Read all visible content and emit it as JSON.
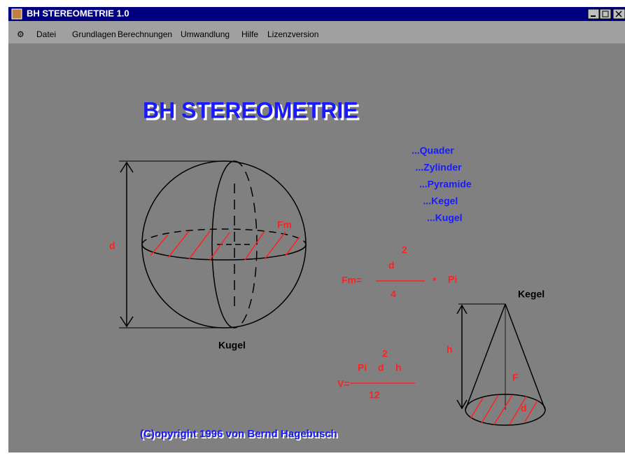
{
  "window": {
    "title": "BH STEREOMETRIE 1.0"
  },
  "menu": {
    "items": [
      "Datei",
      "Grundlagen",
      "Berechnungen",
      "Umwandlung",
      "Hilfe",
      "Lizenzversion"
    ]
  },
  "content": {
    "heading": "BH STEREOMETRIE",
    "links": [
      "...Quader",
      "...Zylinder",
      "...Pyramide",
      "...Kegel",
      "...Kugel"
    ],
    "sphere": {
      "label": "Kugel",
      "diameter": "d",
      "area": "Fm"
    },
    "formula_fm": {
      "lhs": "Fm=",
      "numerator": "d",
      "exponent": "2",
      "denominator": "4",
      "operator": "*",
      "factor": "Pi"
    },
    "cone": {
      "label": "Kegel",
      "height": "h",
      "area": "F",
      "diameter": "d"
    },
    "formula_v": {
      "lhs": "V=",
      "numerator_a": "Pi",
      "numerator_b": "d",
      "exponent": "2",
      "numerator_c": "h",
      "denominator": "12"
    },
    "copyright": "(C)opyright 1996 von Bernd Hagebusch"
  }
}
